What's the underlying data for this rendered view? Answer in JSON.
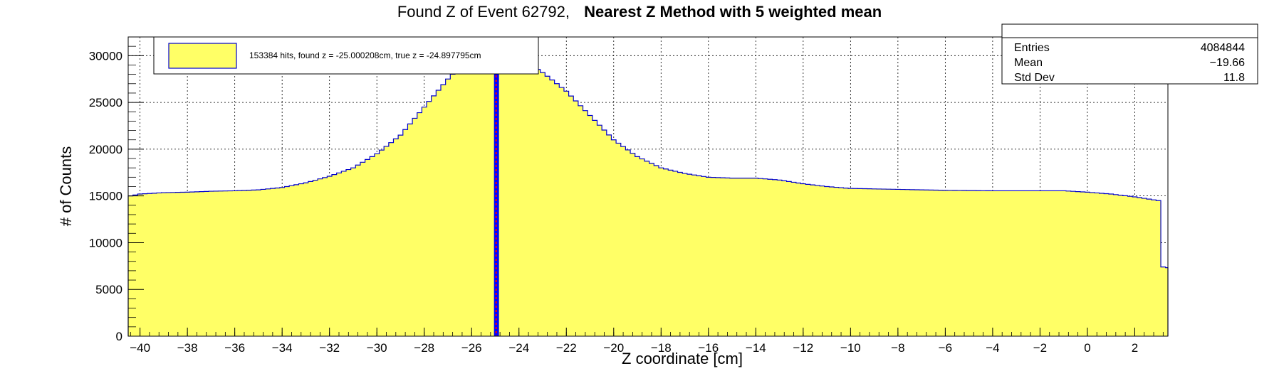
{
  "chart_data": {
    "type": "histogram",
    "title_prefix": "Found Z of Event 62792,",
    "title_bold": "Nearest Z Method with 5 weighted mean",
    "xlabel": "Z coordinate [cm]",
    "ylabel": "# of Counts",
    "xlim": [
      -40.5,
      3.4
    ],
    "ylim": [
      0,
      32000
    ],
    "x_ticks": [
      -40,
      -38,
      -36,
      -34,
      -32,
      -30,
      -28,
      -26,
      -24,
      -22,
      -20,
      -18,
      -16,
      -14,
      -12,
      -10,
      -8,
      -6,
      -4,
      -2,
      0,
      2
    ],
    "y_ticks": [
      0,
      5000,
      10000,
      15000,
      20000,
      25000,
      30000
    ],
    "grid": true,
    "fill_color": "#ffff66",
    "line_color": "#0000cc",
    "bin_width": 0.2,
    "curve_points": [
      [
        -40.5,
        7500
      ],
      [
        -40.4,
        15000
      ],
      [
        -40.0,
        15200
      ],
      [
        -39.0,
        15350
      ],
      [
        -38.0,
        15400
      ],
      [
        -37.0,
        15500
      ],
      [
        -36.0,
        15550
      ],
      [
        -35.0,
        15650
      ],
      [
        -34.0,
        15900
      ],
      [
        -33.0,
        16400
      ],
      [
        -32.0,
        17100
      ],
      [
        -31.0,
        18000
      ],
      [
        -30.0,
        19500
      ],
      [
        -29.0,
        21500
      ],
      [
        -28.0,
        24500
      ],
      [
        -27.0,
        27500
      ],
      [
        -26.5,
        28800
      ],
      [
        -26.0,
        29800
      ],
      [
        -25.5,
        30500
      ],
      [
        -25.0,
        31000
      ],
      [
        -24.5,
        30800
      ],
      [
        -24.0,
        30000
      ],
      [
        -23.5,
        29000
      ],
      [
        -23.0,
        28200
      ],
      [
        -22.0,
        26200
      ],
      [
        -21.0,
        23600
      ],
      [
        -20.0,
        21000
      ],
      [
        -19.0,
        19200
      ],
      [
        -18.0,
        18000
      ],
      [
        -17.0,
        17400
      ],
      [
        -16.0,
        17000
      ],
      [
        -15.0,
        16900
      ],
      [
        -14.0,
        16900
      ],
      [
        -13.0,
        16700
      ],
      [
        -12.0,
        16300
      ],
      [
        -11.0,
        16000
      ],
      [
        -10.0,
        15800
      ],
      [
        -8.0,
        15700
      ],
      [
        -6.0,
        15600
      ],
      [
        -4.0,
        15550
      ],
      [
        -2.0,
        15550
      ],
      [
        -1.0,
        15550
      ],
      [
        0.0,
        15400
      ],
      [
        1.0,
        15200
      ],
      [
        2.0,
        14900
      ],
      [
        3.0,
        14500
      ],
      [
        3.2,
        7400
      ],
      [
        3.4,
        7300
      ]
    ],
    "marker_lines": [
      {
        "name": "found z",
        "x": -25.000208,
        "color": "#ff0000"
      },
      {
        "name": "true z",
        "x": -24.897795,
        "color": "#0000ff"
      }
    ],
    "legend": {
      "placement": "top-left",
      "entries": [
        "153384 hits, found z = -25.000208cm, true z = -24.897795cm"
      ]
    },
    "stats": {
      "placement": "top-right",
      "rows": [
        {
          "label": "Entries",
          "value": "4084844"
        },
        {
          "label": "Mean",
          "value": "−19.66"
        },
        {
          "label": "Std Dev",
          "value": "11.8"
        }
      ]
    }
  }
}
